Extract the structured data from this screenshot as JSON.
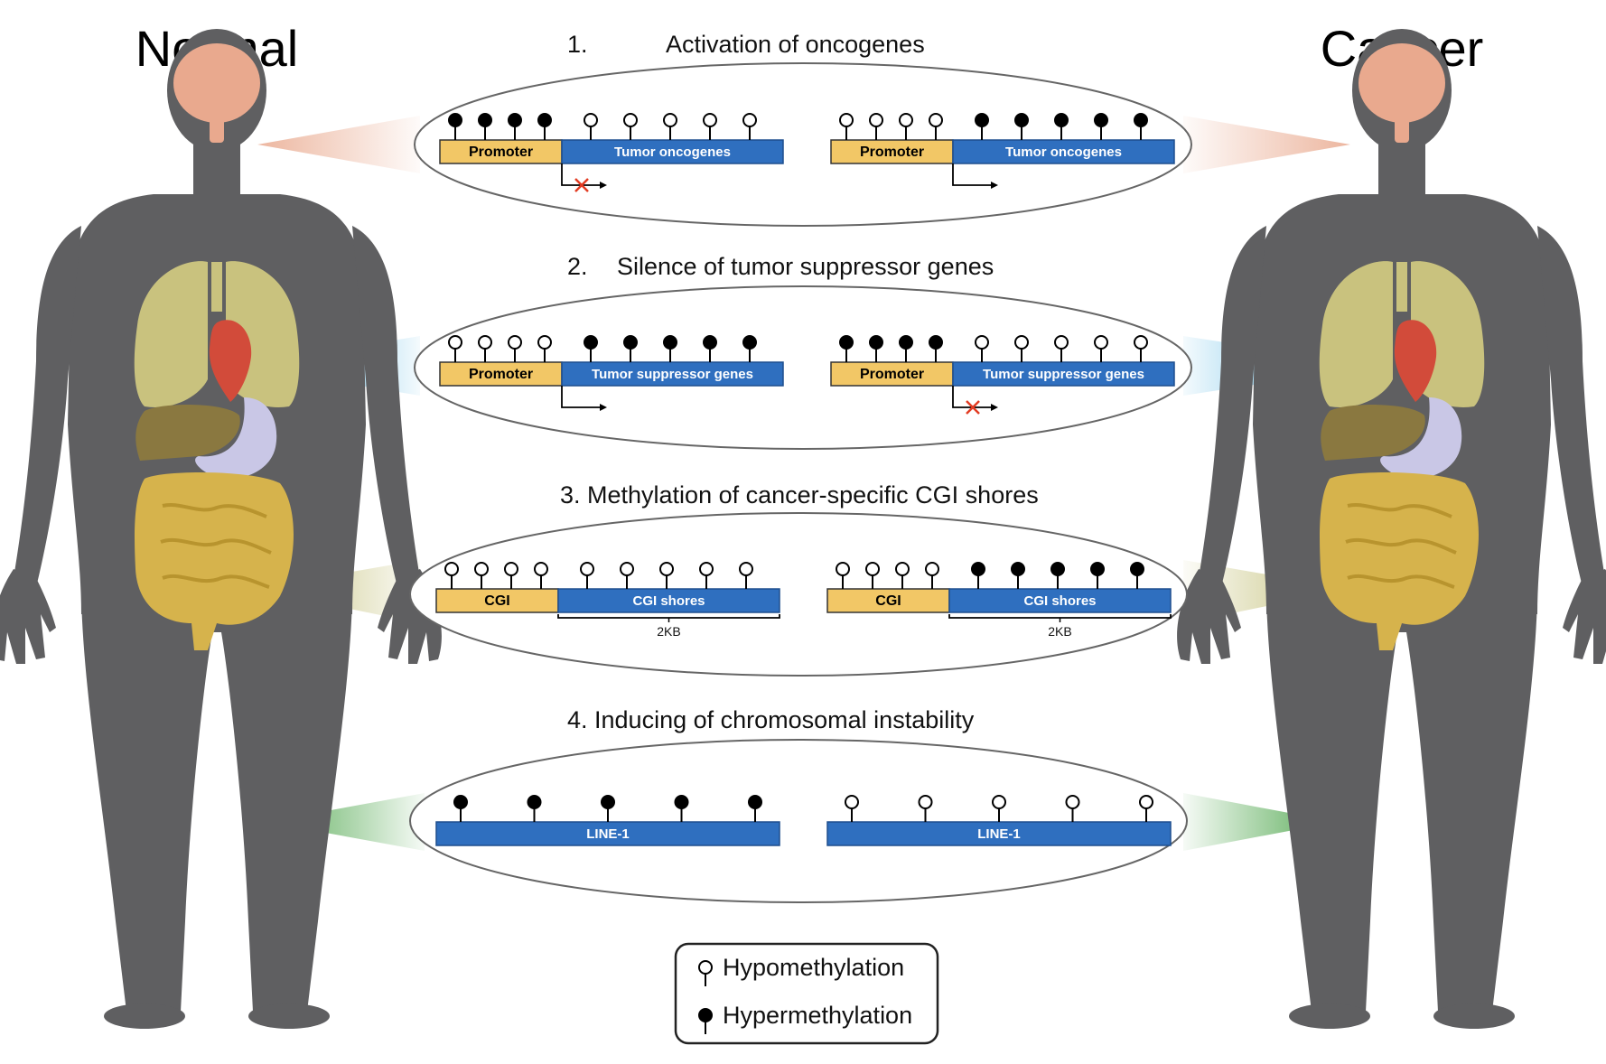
{
  "titles": {
    "normal": "Normal",
    "cancer": "Cancer"
  },
  "sections": [
    {
      "num": "1.",
      "title": "Activation of oncogenes",
      "left": {
        "promoter": "Promoter",
        "gene": "Tumor  oncogenes",
        "promoter_methyl": [
          true,
          true,
          true,
          true
        ],
        "gene_methyl": [
          false,
          false,
          false,
          false,
          false
        ],
        "blocked": true
      },
      "right": {
        "promoter": "Promoter",
        "gene": "Tumor  oncogenes",
        "promoter_methyl": [
          false,
          false,
          false,
          false
        ],
        "gene_methyl": [
          true,
          true,
          true,
          true,
          true
        ],
        "blocked": false
      }
    },
    {
      "num": "2.",
      "title": "Silence of tumor suppressor genes",
      "left": {
        "promoter": "Promoter",
        "gene": "Tumor suppressor genes",
        "promoter_methyl": [
          false,
          false,
          false,
          false
        ],
        "gene_methyl": [
          true,
          true,
          true,
          true,
          true
        ],
        "blocked": false
      },
      "right": {
        "promoter": "Promoter",
        "gene": "Tumor suppressor genes",
        "promoter_methyl": [
          true,
          true,
          true,
          true
        ],
        "gene_methyl": [
          false,
          false,
          false,
          false,
          false
        ],
        "blocked": true
      }
    },
    {
      "title": "3. Methylation of cancer-specific CGI shores",
      "left": {
        "promoter": "CGI",
        "gene": "CGI shores",
        "kb": "2KB",
        "promoter_methyl": [
          false,
          false,
          false,
          false
        ],
        "gene_methyl": [
          false,
          false,
          false,
          false,
          false
        ]
      },
      "right": {
        "promoter": "CGI",
        "gene": "CGI shores",
        "kb": "2KB",
        "promoter_methyl": [
          false,
          false,
          false,
          false
        ],
        "gene_methyl": [
          true,
          true,
          true,
          true,
          true
        ]
      }
    },
    {
      "title": "4. Inducing of chromosomal instability",
      "left": {
        "gene": "LINE-1",
        "gene_methyl": [
          true,
          true,
          true,
          true,
          true
        ]
      },
      "right": {
        "gene": "LINE-1",
        "gene_methyl": [
          false,
          false,
          false,
          false,
          false
        ]
      }
    }
  ],
  "legend": {
    "hypo": "Hypomethylation",
    "hyper": "Hypermethylation"
  },
  "colors": {
    "body": "#5f5f61",
    "promoter": "#f2c766",
    "gene": "#2f6fbf",
    "brain": "#e9a98e",
    "lung": "#c9c27e",
    "heart": "#d24b3a",
    "liver": "#8a7840",
    "stomach": "#c9c7e6",
    "intestine": "#d6b34c",
    "beam1": "#e9a98e",
    "beam2": "#3fb0e0",
    "beam3": "#c9c27e",
    "beam4": "#5aaa55",
    "blocked": "#e23b22"
  }
}
